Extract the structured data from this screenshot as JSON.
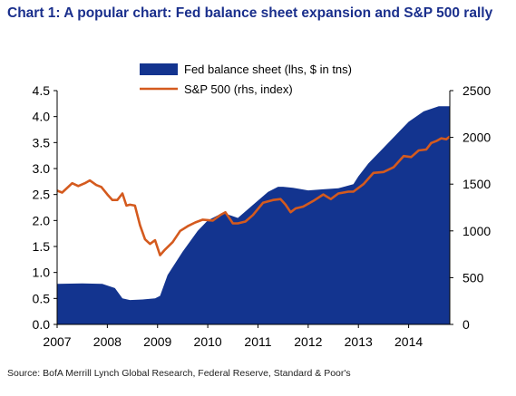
{
  "title": "Chart 1: A popular chart: Fed balance sheet expansion and S&P 500 rally",
  "source": "Source: BofA Merrill Lynch Global Research, Federal Reserve, Standard & Poor's",
  "colors": {
    "area": "#13348f",
    "line": "#d45a1e",
    "axis": "#000000",
    "title": "#1a2f8c"
  },
  "chart_data": {
    "type": "area",
    "title": "Chart 1: A popular chart: Fed balance sheet expansion and S&P 500 rally",
    "xlabel": "",
    "ylabel_left": "",
    "ylabel_right": "",
    "xlim": [
      2007.0,
      2014.82
    ],
    "ylim_left": [
      0,
      4.5
    ],
    "ylim_right": [
      0,
      2500
    ],
    "x_ticks": [
      2007,
      2008,
      2009,
      2010,
      2011,
      2012,
      2013,
      2014
    ],
    "y_ticks_left": [
      "0.0",
      "0.5",
      "1.0",
      "1.5",
      "2.0",
      "2.5",
      "3.0",
      "3.5",
      "4.0",
      "4.5"
    ],
    "y_ticks_right": [
      "0",
      "500",
      "1000",
      "1500",
      "2000",
      "2500"
    ],
    "grid": false,
    "legend_position": "top-center",
    "series": [
      {
        "name": "Fed balance sheet (lhs, $ in tns)",
        "type": "area",
        "axis": "left",
        "x": [
          2007.0,
          2007.5,
          2007.9,
          2008.15,
          2008.3,
          2008.45,
          2008.7,
          2008.95,
          2009.05,
          2009.2,
          2009.5,
          2009.8,
          2010.0,
          2010.3,
          2010.6,
          2010.9,
          2011.2,
          2011.4,
          2011.5,
          2011.7,
          2012.0,
          2012.3,
          2012.6,
          2012.9,
          2013.0,
          2013.2,
          2013.5,
          2013.8,
          2014.0,
          2014.3,
          2014.6,
          2014.82
        ],
        "y": [
          0.78,
          0.79,
          0.78,
          0.7,
          0.5,
          0.47,
          0.48,
          0.5,
          0.55,
          0.95,
          1.4,
          1.8,
          2.0,
          2.15,
          2.05,
          2.3,
          2.55,
          2.65,
          2.65,
          2.63,
          2.58,
          2.6,
          2.62,
          2.7,
          2.85,
          3.1,
          3.4,
          3.7,
          3.9,
          4.1,
          4.2,
          4.2
        ]
      },
      {
        "name": "S&P 500 (rhs, index)",
        "type": "line",
        "axis": "right",
        "x": [
          2007.0,
          2007.1,
          2007.2,
          2007.3,
          2007.42,
          2007.55,
          2007.65,
          2007.78,
          2007.88,
          2008.0,
          2008.1,
          2008.2,
          2008.3,
          2008.38,
          2008.45,
          2008.55,
          2008.65,
          2008.75,
          2008.85,
          2008.95,
          2009.05,
          2009.15,
          2009.3,
          2009.45,
          2009.6,
          2009.75,
          2009.9,
          2010.1,
          2010.25,
          2010.35,
          2010.5,
          2010.6,
          2010.75,
          2010.9,
          2011.1,
          2011.3,
          2011.45,
          2011.55,
          2011.65,
          2011.75,
          2011.9,
          2012.1,
          2012.3,
          2012.45,
          2012.6,
          2012.8,
          2012.9,
          2013.1,
          2013.3,
          2013.5,
          2013.7,
          2013.9,
          2014.05,
          2014.2,
          2014.35,
          2014.45,
          2014.55,
          2014.65,
          2014.75,
          2014.82
        ],
        "y": [
          1430,
          1410,
          1460,
          1510,
          1480,
          1510,
          1540,
          1490,
          1470,
          1390,
          1330,
          1330,
          1400,
          1270,
          1280,
          1270,
          1060,
          910,
          860,
          900,
          740,
          800,
          880,
          1000,
          1050,
          1090,
          1120,
          1110,
          1170,
          1200,
          1080,
          1080,
          1100,
          1170,
          1300,
          1330,
          1340,
          1280,
          1200,
          1240,
          1260,
          1320,
          1390,
          1340,
          1400,
          1420,
          1420,
          1500,
          1620,
          1630,
          1680,
          1800,
          1790,
          1860,
          1870,
          1940,
          1960,
          1990,
          1980,
          2010
        ]
      }
    ]
  }
}
